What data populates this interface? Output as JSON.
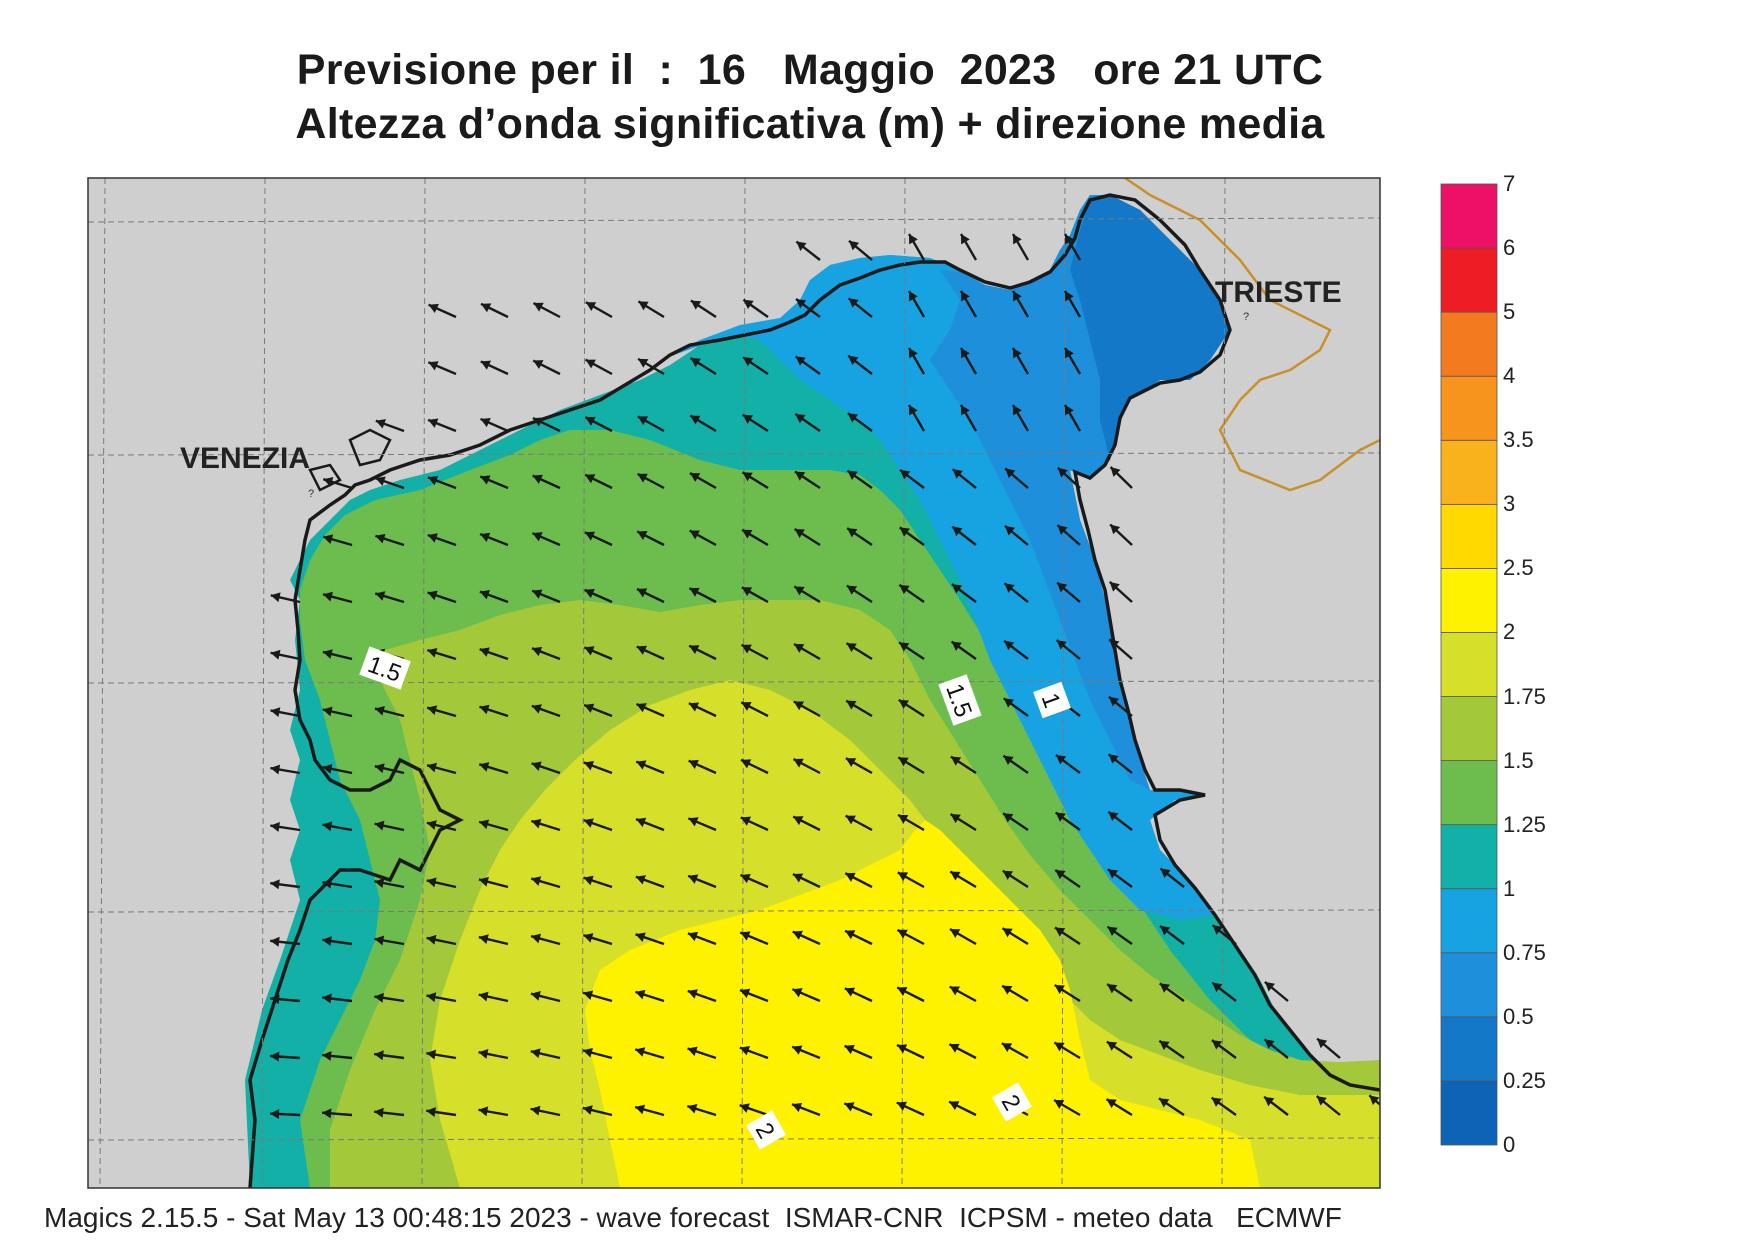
{
  "title": {
    "line1": "Previsione per il  :  16   Maggio  2023   ore 21 UTC",
    "line2": "Altezza d’onda significativa (m) + direzione media"
  },
  "places": {
    "venezia": "VENEZIA",
    "trieste": "TRIESTE"
  },
  "contour_labels": [
    "1.5",
    "1.5",
    "1",
    "2",
    "2"
  ],
  "footer": "Magics 2.15.5 - Sat May 13 00:48:15 2023 - wave forecast  ISMAR-CNR  ICPSM - meteo data   ECMWF",
  "colorbar": {
    "labels": [
      "0",
      "0.25",
      "0.5",
      "0.75",
      "1",
      "1.25",
      "1.5",
      "1.75",
      "2",
      "2.5",
      "3",
      "3.5",
      "4",
      "5",
      "6",
      "7"
    ],
    "colors": [
      "#0d63b5",
      "#1378c8",
      "#1d8fdb",
      "#17a3e2",
      "#12b0a6",
      "#6cbd4e",
      "#a3c93a",
      "#d6df2a",
      "#fff200",
      "#ffd900",
      "#f9b21c",
      "#f7941d",
      "#f47a1f",
      "#ee1c24",
      "#ec1166"
    ]
  },
  "colors": {
    "land": "#cfcfcf",
    "coast": "#1a1a1a",
    "border": "#c8902a",
    "arrow": "#1a1a1a"
  },
  "wave_field": {
    "direction": "from south-east toward north-west",
    "max_height_m": 2.0,
    "min_height_m": 0.25
  }
}
